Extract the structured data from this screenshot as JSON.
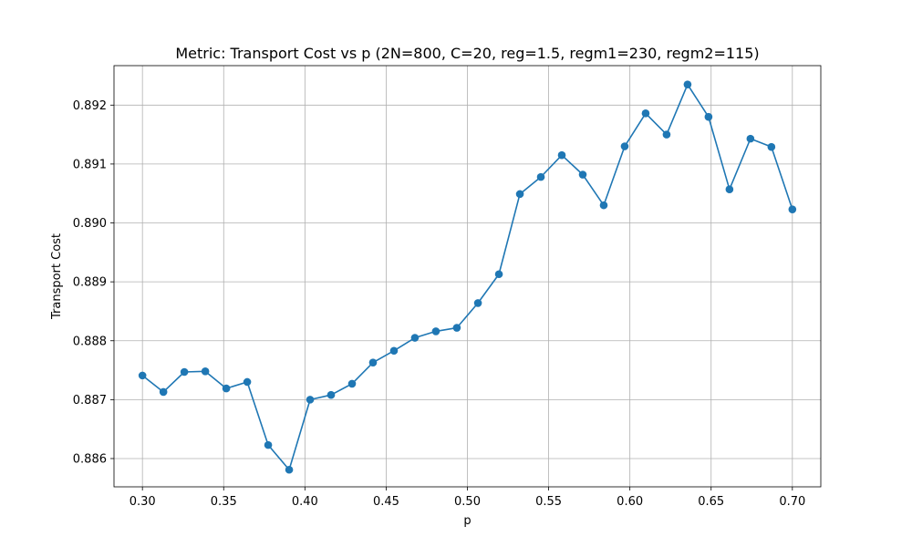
{
  "chart_data": {
    "type": "line",
    "title": "Metric: Transport Cost vs p (2N=800, C=20, reg=1.5, regm1=230, regm2=115)",
    "xlabel": "p",
    "ylabel": "Transport Cost",
    "xlim": [
      0.2825,
      0.7175
    ],
    "ylim": [
      0.88552,
      0.89267
    ],
    "x_ticks": [
      0.3,
      0.35,
      0.4,
      0.45,
      0.5,
      0.55,
      0.6,
      0.65,
      0.7
    ],
    "x_tick_labels": [
      "0.30",
      "0.35",
      "0.40",
      "0.45",
      "0.50",
      "0.55",
      "0.60",
      "0.65",
      "0.70"
    ],
    "y_ticks": [
      0.886,
      0.887,
      0.888,
      0.889,
      0.89,
      0.891,
      0.892
    ],
    "y_tick_labels": [
      "0.886",
      "0.887",
      "0.888",
      "0.889",
      "0.890",
      "0.891",
      "0.892"
    ],
    "grid": true,
    "color": "#1f77b4",
    "series": [
      {
        "marker": "circle",
        "x": [
          0.3,
          0.3129,
          0.3258,
          0.3387,
          0.3516,
          0.3645,
          0.3774,
          0.3903,
          0.4032,
          0.4161,
          0.429,
          0.4419,
          0.4548,
          0.4677,
          0.4806,
          0.4935,
          0.5065,
          0.5194,
          0.5323,
          0.5452,
          0.5581,
          0.571,
          0.5839,
          0.5968,
          0.6097,
          0.6226,
          0.6355,
          0.6484,
          0.6613,
          0.6742,
          0.6871,
          0.7
        ],
        "y": [
          0.88741,
          0.88713,
          0.88747,
          0.88748,
          0.88719,
          0.8873,
          0.88623,
          0.88581,
          0.887,
          0.88708,
          0.88727,
          0.88763,
          0.88783,
          0.88805,
          0.88816,
          0.88822,
          0.88864,
          0.88913,
          0.89049,
          0.89078,
          0.89115,
          0.89082,
          0.8903,
          0.8913,
          0.89186,
          0.8915,
          0.89235,
          0.8918,
          0.89057,
          0.89143,
          0.89129,
          0.89023
        ]
      }
    ]
  }
}
